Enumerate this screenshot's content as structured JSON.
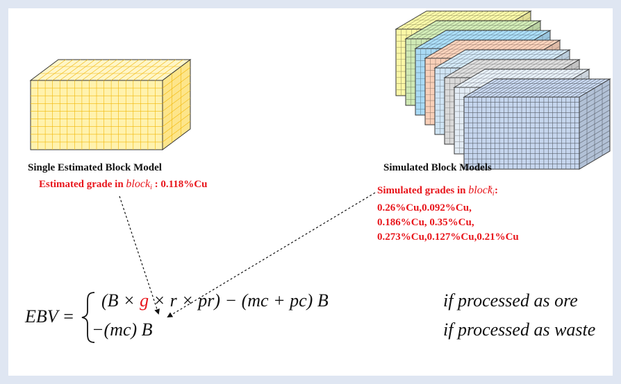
{
  "single_model": {
    "title": "Single Estimated Block Model",
    "grade_prefix": "Estimated grade in",
    "block_var": "block",
    "block_sub": "i",
    "grade_value": ": 0.118%Cu",
    "colors": {
      "top": "#fff6c8",
      "front": "#fff2ae",
      "side": "#fde58a",
      "grid": "#f2b705"
    }
  },
  "simulated_models": {
    "title": "Simulated Block Models",
    "grade_prefix": "Simulated grades in",
    "block_var": "block",
    "block_sub": "i",
    "block_sup": "s",
    "grade_suffix": ":",
    "grade_lines": [
      "0.26%Cu,0.092%Cu,",
      "0.186%Cu, 0.35%Cu,",
      "0.273%Cu,0.127%Cu,0.21%Cu"
    ],
    "stack_colors": [
      "#fbf7a6",
      "#cfe8b4",
      "#a9daf5",
      "#f8cfb8",
      "#cfe4f4",
      "#d9d9d9",
      "#e3ecf5",
      "#c6d6ee"
    ]
  },
  "equation": {
    "lhs": "EBV =",
    "ore_expr_pre": "(B ×",
    "ore_expr_g": "g",
    "ore_expr_post": "×  r  × pr) − (mc + pc) B",
    "waste_expr": "−(mc) B",
    "ore_condition": "if  processed as ore",
    "waste_condition": "if  processed as waste"
  }
}
